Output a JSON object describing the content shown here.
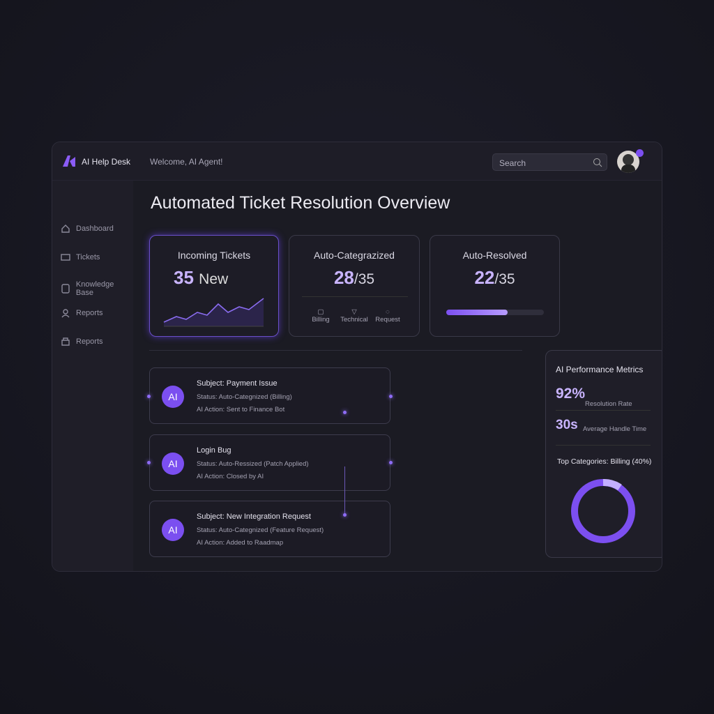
{
  "header": {
    "brand": "AI Help Desk",
    "welcome": "Welcome, AI Agent!",
    "search": "Search"
  },
  "sidebar": [
    "Dashboard",
    "Tickets",
    "Knowledge Base",
    "Reports",
    "Reports"
  ],
  "page_title": "Automated Ticket Resolution Overview",
  "cards": [
    {
      "title": "Incoming Tickets",
      "value": 35,
      "unit": "New"
    },
    {
      "title": "Auto-Categrazized",
      "value": 28,
      "separator": "/",
      "total": 35,
      "categories": [
        "Billing",
        "Technical",
        "Request"
      ]
    },
    {
      "title": "Auto-Resolved",
      "value": 22,
      "separator": "/",
      "total": 35
    }
  ],
  "tickets": [
    {
      "badge": "AI",
      "subject": "Subject: Payment Issue",
      "status": "Status: Auto-Categnized (Billing)",
      "action": "AI Action: Sent to Finance Bot"
    },
    {
      "badge": "AI",
      "subject": "Login Bug",
      "status": "Status: Auto-Ressized (Patch Applied)",
      "action": "AI Action: Closed by AI"
    },
    {
      "badge": "AI",
      "subject": "Subject: New Integration Request",
      "status": "Status: Auto-Categnized (Feature Request)",
      "action": "AI Action: Added to Raadmap"
    }
  ],
  "metrics": {
    "title": "AI Performance Metrics",
    "items": [
      {
        "value": "92%",
        "label": "Resolution Rate"
      },
      {
        "value": "30s",
        "label": "Average Handle Time"
      }
    ],
    "top_categories": "Top Categories: Billing (40%)"
  }
}
